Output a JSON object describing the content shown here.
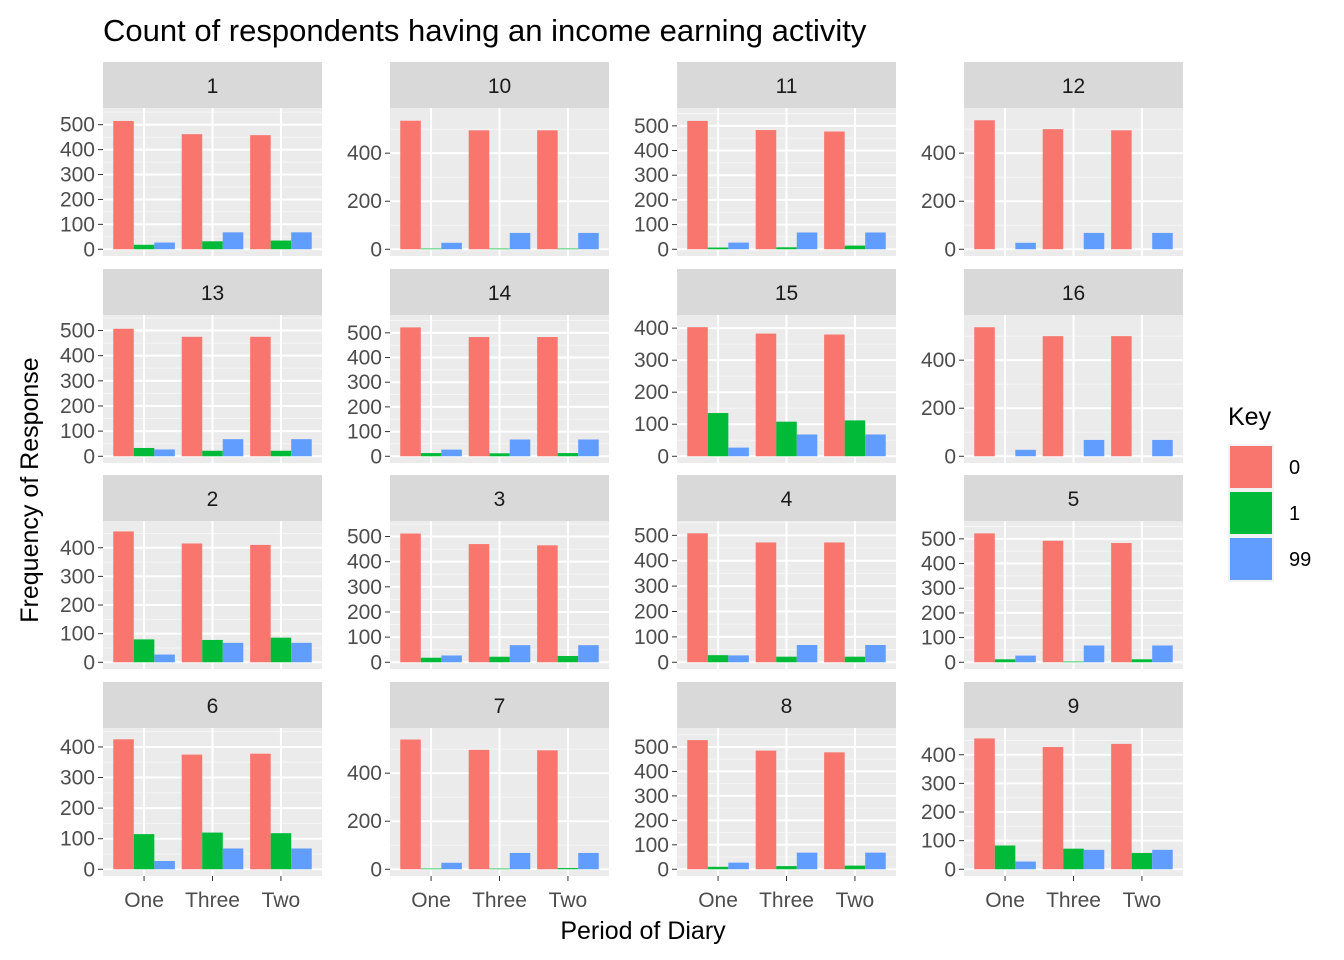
{
  "chart_data": {
    "type": "bar",
    "title": "Count of respondents having an income earning activity",
    "xlabel": "Period of Diary",
    "ylabel": "Frequency of Response",
    "categories": [
      "One",
      "Three",
      "Two"
    ],
    "legend": {
      "title": "Key",
      "position": "right",
      "entries": [
        {
          "name": "0",
          "color": "#F8766D"
        },
        {
          "name": "1",
          "color": "#00BA38"
        },
        {
          "name": "99",
          "color": "#619CFF"
        }
      ]
    },
    "grid": true,
    "facets": [
      {
        "label": "1",
        "yticks": [
          0,
          100,
          200,
          300,
          400,
          500
        ],
        "ylim": [
          0,
          540
        ],
        "series": [
          {
            "name": "0",
            "values": [
              515,
              462,
              458
            ]
          },
          {
            "name": "1",
            "values": [
              18,
              32,
              35
            ]
          },
          {
            "name": "99",
            "values": [
              27,
              68,
              68
            ]
          }
        ]
      },
      {
        "label": "10",
        "yticks": [
          0,
          200,
          400
        ],
        "ylim": [
          0,
          560
        ],
        "series": [
          {
            "name": "0",
            "values": [
              535,
              495,
              495
            ]
          },
          {
            "name": "1",
            "values": [
              3,
              3,
              3
            ]
          },
          {
            "name": "99",
            "values": [
              27,
              68,
              68
            ]
          }
        ]
      },
      {
        "label": "11",
        "yticks": [
          0,
          100,
          200,
          300,
          400,
          500
        ],
        "ylim": [
          0,
          545
        ],
        "series": [
          {
            "name": "0",
            "values": [
              520,
              483,
              477
            ]
          },
          {
            "name": "1",
            "values": [
              7,
              8,
              15
            ]
          },
          {
            "name": "99",
            "values": [
              27,
              68,
              68
            ]
          }
        ]
      },
      {
        "label": "12",
        "yticks": [
          0,
          200,
          400
        ],
        "ylim": [
          0,
          560
        ],
        "series": [
          {
            "name": "0",
            "values": [
              537,
              500,
              495
            ]
          },
          {
            "name": "1",
            "values": [
              0,
              0,
              0
            ]
          },
          {
            "name": "99",
            "values": [
              27,
              68,
              68
            ]
          }
        ]
      },
      {
        "label": "13",
        "yticks": [
          0,
          100,
          200,
          300,
          400,
          500
        ],
        "ylim": [
          0,
          535
        ],
        "series": [
          {
            "name": "0",
            "values": [
              507,
              475,
              475
            ]
          },
          {
            "name": "1",
            "values": [
              33,
              22,
              22
            ]
          },
          {
            "name": "99",
            "values": [
              27,
              68,
              68
            ]
          }
        ]
      },
      {
        "label": "14",
        "yticks": [
          0,
          100,
          200,
          300,
          400,
          500
        ],
        "ylim": [
          0,
          545
        ],
        "series": [
          {
            "name": "0",
            "values": [
              522,
              483,
              483
            ]
          },
          {
            "name": "1",
            "values": [
              13,
              12,
              13
            ]
          },
          {
            "name": "99",
            "values": [
              27,
              68,
              68
            ]
          }
        ]
      },
      {
        "label": "15",
        "yticks": [
          0,
          100,
          200,
          300,
          400
        ],
        "ylim": [
          0,
          420
        ],
        "series": [
          {
            "name": "0",
            "values": [
              403,
              383,
              380
            ]
          },
          {
            "name": "1",
            "values": [
              135,
              108,
              112
            ]
          },
          {
            "name": "99",
            "values": [
              27,
              68,
              68
            ]
          }
        ]
      },
      {
        "label": "16",
        "yticks": [
          0,
          200,
          400
        ],
        "ylim": [
          0,
          560
        ],
        "series": [
          {
            "name": "0",
            "values": [
              537,
              500,
              500
            ]
          },
          {
            "name": "1",
            "values": [
              0,
              0,
              0
            ]
          },
          {
            "name": "99",
            "values": [
              27,
              68,
              68
            ]
          }
        ]
      },
      {
        "label": "2",
        "yticks": [
          0,
          100,
          200,
          300,
          400
        ],
        "ylim": [
          0,
          470
        ],
        "series": [
          {
            "name": "0",
            "values": [
              457,
              415,
              410
            ]
          },
          {
            "name": "1",
            "values": [
              80,
              78,
              86
            ]
          },
          {
            "name": "99",
            "values": [
              27,
              68,
              68
            ]
          }
        ]
      },
      {
        "label": "3",
        "yticks": [
          0,
          100,
          200,
          300,
          400,
          500
        ],
        "ylim": [
          0,
          535
        ],
        "series": [
          {
            "name": "0",
            "values": [
              512,
              470,
              465
            ]
          },
          {
            "name": "1",
            "values": [
              18,
              22,
              25
            ]
          },
          {
            "name": "99",
            "values": [
              27,
              68,
              68
            ]
          }
        ]
      },
      {
        "label": "4",
        "yticks": [
          0,
          100,
          200,
          300,
          400,
          500
        ],
        "ylim": [
          0,
          530
        ],
        "series": [
          {
            "name": "0",
            "values": [
              508,
              472,
              472
            ]
          },
          {
            "name": "1",
            "values": [
              28,
              22,
              22
            ]
          },
          {
            "name": "99",
            "values": [
              27,
              68,
              68
            ]
          }
        ]
      },
      {
        "label": "5",
        "yticks": [
          0,
          100,
          200,
          300,
          400,
          500
        ],
        "ylim": [
          0,
          545
        ],
        "series": [
          {
            "name": "0",
            "values": [
              522,
              492,
              483
            ]
          },
          {
            "name": "1",
            "values": [
              12,
              3,
              12
            ]
          },
          {
            "name": "99",
            "values": [
              27,
              68,
              68
            ]
          }
        ]
      },
      {
        "label": "6",
        "yticks": [
          0,
          100,
          200,
          300,
          400
        ],
        "ylim": [
          0,
          440
        ],
        "series": [
          {
            "name": "0",
            "values": [
              425,
              375,
              378
            ]
          },
          {
            "name": "1",
            "values": [
              115,
              120,
              118
            ]
          },
          {
            "name": "99",
            "values": [
              27,
              68,
              68
            ]
          }
        ]
      },
      {
        "label": "7",
        "yticks": [
          0,
          200,
          400
        ],
        "ylim": [
          0,
          560
        ],
        "series": [
          {
            "name": "0",
            "values": [
              540,
              497,
              495
            ]
          },
          {
            "name": "1",
            "values": [
              3,
              3,
              5
            ]
          },
          {
            "name": "99",
            "values": [
              27,
              68,
              68
            ]
          }
        ]
      },
      {
        "label": "8",
        "yticks": [
          0,
          100,
          200,
          300,
          400,
          500
        ],
        "ylim": [
          0,
          550
        ],
        "series": [
          {
            "name": "0",
            "values": [
              528,
              485,
              478
            ]
          },
          {
            "name": "1",
            "values": [
              10,
              13,
              15
            ]
          },
          {
            "name": "99",
            "values": [
              27,
              68,
              68
            ]
          }
        ]
      },
      {
        "label": "9",
        "yticks": [
          0,
          100,
          200,
          300,
          400
        ],
        "ylim": [
          0,
          470
        ],
        "series": [
          {
            "name": "0",
            "values": [
              457,
              427,
              438
            ]
          },
          {
            "name": "1",
            "values": [
              83,
              72,
              57
            ]
          },
          {
            "name": "99",
            "values": [
              27,
              68,
              68
            ]
          }
        ]
      }
    ]
  }
}
